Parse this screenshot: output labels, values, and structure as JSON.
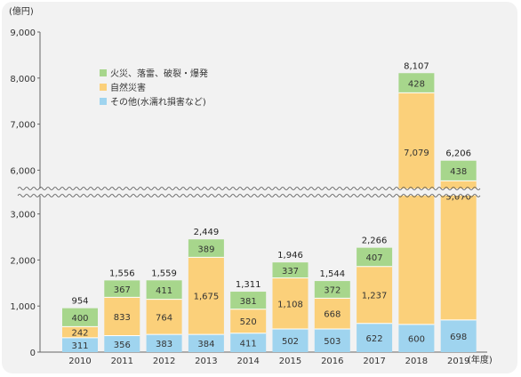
{
  "chart_data": {
    "type": "bar",
    "stacked": true,
    "y_unit": "(億円)",
    "x_unit": "(年度)",
    "categories": [
      "2010",
      "2011",
      "2012",
      "2013",
      "2014",
      "2015",
      "2016",
      "2017",
      "2018",
      "2019"
    ],
    "series": [
      {
        "name": "その他(水濡れ損害など)",
        "color": "#9fd4ef",
        "values": [
          311,
          356,
          383,
          384,
          411,
          502,
          503,
          622,
          600,
          698
        ]
      },
      {
        "name": "自然災害",
        "color": "#fbd07a",
        "values": [
          242,
          833,
          764,
          1675,
          520,
          1108,
          668,
          1237,
          7079,
          5070
        ]
      },
      {
        "name": "火災、落雷、破裂・爆発",
        "color": "#a7d68c",
        "values": [
          400,
          367,
          411,
          389,
          381,
          337,
          372,
          407,
          428,
          438
        ]
      }
    ],
    "totals": [
      "954",
      "1,556",
      "1,559",
      "2,449",
      "1,311",
      "1,946",
      "1,544",
      "2,266",
      "8,107",
      "6,206"
    ],
    "value_labels": [
      [
        "311",
        "356",
        "383",
        "384",
        "411",
        "502",
        "503",
        "622",
        "600",
        "698"
      ],
      [
        "242",
        "833",
        "764",
        "1,675",
        "520",
        "1,108",
        "668",
        "1,237",
        "7,079",
        "5,070"
      ],
      [
        "400",
        "367",
        "411",
        "389",
        "381",
        "337",
        "372",
        "407",
        "428",
        "438"
      ]
    ],
    "y_ticks_lower": [
      {
        "value": 0,
        "label": "0"
      },
      {
        "value": 1000,
        "label": "1,000"
      },
      {
        "value": 2000,
        "label": "2,000"
      },
      {
        "value": 3000,
        "label": "3,000"
      }
    ],
    "y_ticks_upper": [
      {
        "value": 6000,
        "label": "6,000"
      },
      {
        "value": 7000,
        "label": "7,000"
      },
      {
        "value": 8000,
        "label": "8,000"
      },
      {
        "value": 9000,
        "label": "9,000"
      }
    ],
    "axis_break": [
      3500,
      5500
    ],
    "legend_position": "top-left",
    "grid": false
  }
}
